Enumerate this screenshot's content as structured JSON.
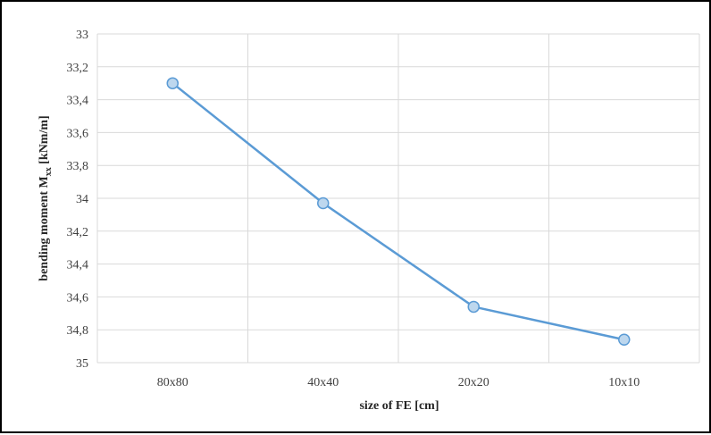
{
  "chart_data": {
    "type": "line",
    "categories": [
      "80x80",
      "40x40",
      "20x20",
      "10x10"
    ],
    "series": [
      {
        "values": [
          33.3,
          34.03,
          34.66,
          34.86
        ]
      }
    ],
    "title": "",
    "xlabel": "size of FE [cm]",
    "ylabel_main": "bending moment M",
    "ylabel_sub": "xx",
    "ylabel_unit": " [kNm/m]",
    "ylim": [
      33,
      35
    ],
    "y_inverted": true,
    "y_ticks": [
      33,
      33.2,
      33.4,
      33.6,
      33.8,
      34,
      34.2,
      34.4,
      34.6,
      34.8,
      35
    ],
    "y_tick_labels": [
      "33",
      "33,2",
      "33,4",
      "33,6",
      "33,8",
      "34",
      "34,2",
      "34,4",
      "34,6",
      "34,8",
      "35"
    ],
    "grid": true,
    "colors": {
      "line": "#5b9bd5",
      "marker_fill": "#bdd7ee",
      "marker_stroke": "#5b9bd5",
      "grid": "#d9d9d9"
    }
  }
}
